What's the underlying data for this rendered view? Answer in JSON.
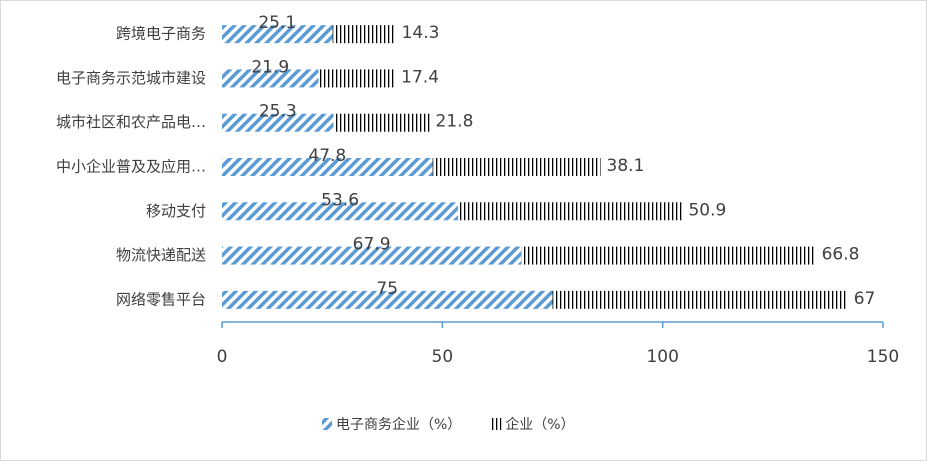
{
  "chart_data": {
    "type": "stacked-bar-horizontal",
    "categories": [
      "跨境电子商务",
      "电子商务示范城市建设",
      "城市社区和农产品电…",
      "中小企业普及及应用…",
      "移动支付",
      "物流快递配送",
      "网络零售平台"
    ],
    "series": [
      {
        "name": "电子商务企业（%）",
        "color": "#5b9bd5",
        "values": [
          25.1,
          21.9,
          25.3,
          47.8,
          53.6,
          67.9,
          75
        ]
      },
      {
        "name": "企业（%）",
        "color": "#000000",
        "values": [
          14.3,
          17.4,
          21.8,
          38.1,
          50.9,
          66.8,
          67
        ]
      }
    ],
    "xlim": [
      0,
      150
    ],
    "xticks": [
      0,
      50,
      100,
      150
    ],
    "legend": "bottom"
  }
}
